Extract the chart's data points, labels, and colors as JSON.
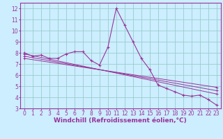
{
  "background_color": "#cceeff",
  "grid_color": "#99cccc",
  "line_color": "#993399",
  "marker": "+",
  "xlabel": "Windchill (Refroidissement éolien,°C)",
  "xlabel_fontsize": 6.5,
  "tick_fontsize": 5.5,
  "xlim": [
    -0.5,
    23.5
  ],
  "ylim": [
    3,
    12.5
  ],
  "yticks": [
    3,
    4,
    5,
    6,
    7,
    8,
    9,
    10,
    11,
    12
  ],
  "xticks": [
    0,
    1,
    2,
    3,
    4,
    5,
    6,
    7,
    8,
    9,
    10,
    11,
    12,
    13,
    14,
    15,
    16,
    17,
    18,
    19,
    20,
    21,
    22,
    23
  ],
  "main_series": {
    "x": [
      0,
      1,
      2,
      3,
      4,
      5,
      6,
      7,
      8,
      9,
      10,
      11,
      12,
      13,
      14,
      15,
      16,
      17,
      18,
      19,
      20,
      21,
      22,
      23
    ],
    "y": [
      8.0,
      7.7,
      7.8,
      7.5,
      7.5,
      7.9,
      8.1,
      8.1,
      7.3,
      6.9,
      8.5,
      12.0,
      10.5,
      9.0,
      7.5,
      6.5,
      5.1,
      4.8,
      4.5,
      4.2,
      4.1,
      4.2,
      3.8,
      3.3
    ]
  },
  "trend_lines": [
    {
      "x": [
        0,
        23
      ],
      "y": [
        7.9,
        4.3
      ]
    },
    {
      "x": [
        0,
        23
      ],
      "y": [
        7.7,
        4.6
      ]
    },
    {
      "x": [
        0,
        23
      ],
      "y": [
        7.5,
        4.9
      ]
    }
  ]
}
